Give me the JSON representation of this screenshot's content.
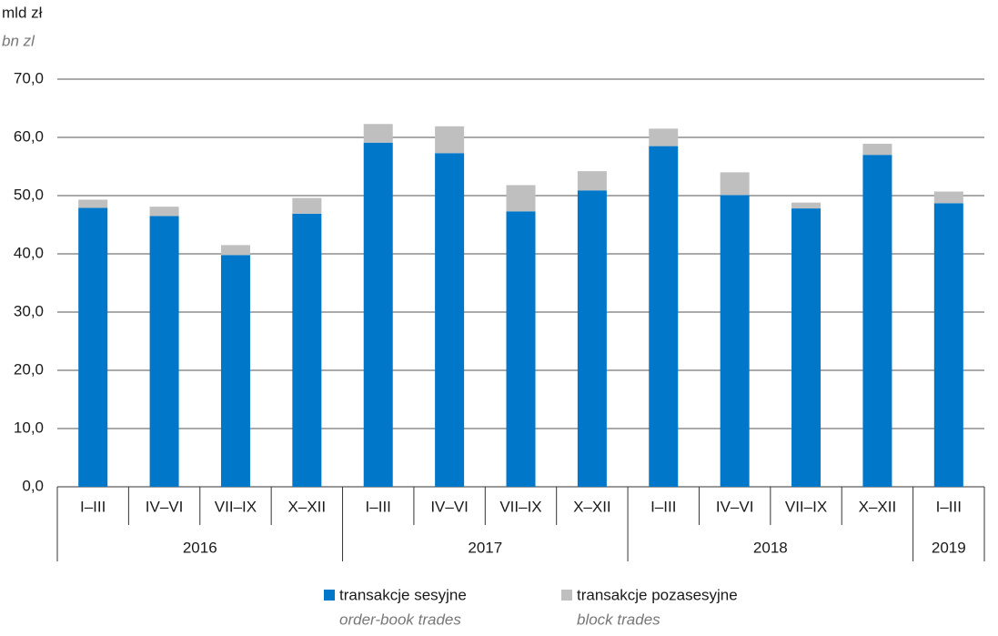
{
  "chart_data": {
    "type": "stacked_bar",
    "unit_label": "mld zł",
    "unit_label_en": "bn zl",
    "categories": [
      "I–III",
      "IV–VI",
      "VII–IX",
      "X–XII",
      "I–III",
      "IV–VI",
      "VII–IX",
      "X–XII",
      "I–III",
      "IV–VI",
      "VII–IX",
      "X–XII",
      "I–III"
    ],
    "groups": [
      {
        "label": "2016",
        "count": 4
      },
      {
        "label": "2017",
        "count": 4
      },
      {
        "label": "2018",
        "count": 4
      },
      {
        "label": "2019",
        "count": 1
      }
    ],
    "series": [
      {
        "name": "transakcje sesyjne",
        "name_en": "order-book trades",
        "color": "#0077c8",
        "values": [
          47.9,
          46.5,
          39.8,
          46.9,
          59.1,
          57.3,
          47.3,
          50.9,
          58.5,
          50.1,
          47.8,
          57.0,
          48.7
        ]
      },
      {
        "name": "transakcje pozasesyjne",
        "name_en": "block trades",
        "color": "#bfbfbf",
        "values": [
          1.4,
          1.6,
          1.7,
          2.7,
          3.2,
          4.6,
          4.5,
          3.3,
          3.0,
          3.9,
          1.0,
          1.9,
          2.0
        ]
      }
    ],
    "ylim": [
      0,
      70
    ],
    "yticks": [
      {
        "value": 0,
        "label": "0,0"
      },
      {
        "value": 10,
        "label": "10,0"
      },
      {
        "value": 20,
        "label": "20,0"
      },
      {
        "value": 30,
        "label": "30,0"
      },
      {
        "value": 40,
        "label": "40,0"
      },
      {
        "value": 50,
        "label": "50,0"
      },
      {
        "value": 60,
        "label": "60,0"
      },
      {
        "value": 70,
        "label": "70,0"
      }
    ],
    "grid": true
  }
}
